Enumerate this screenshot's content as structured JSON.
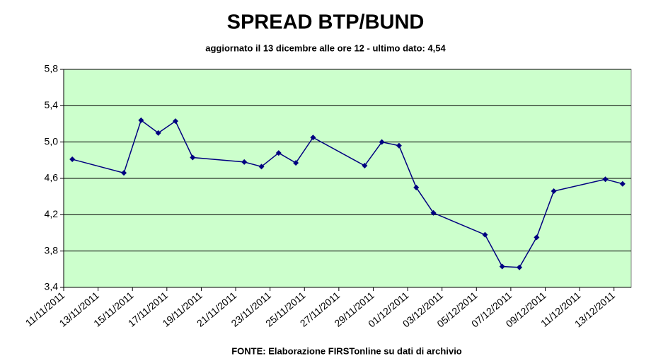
{
  "chart_data": {
    "type": "line",
    "title": "SPREAD BTP/BUND",
    "subtitle": "aggiornato il 13 dicembre alle ore 12 - ultimo dato: 4,54",
    "source": "FONTE: Elaborazione FIRSTonline su dati di archivio",
    "x": [
      "11/11/2011",
      "14/11/2011",
      "15/11/2011",
      "16/11/2011",
      "17/11/2011",
      "18/11/2011",
      "21/11/2011",
      "22/11/2011",
      "23/11/2011",
      "24/11/2011",
      "25/11/2011",
      "28/11/2011",
      "29/11/2011",
      "30/11/2011",
      "01/12/2011",
      "02/12/2011",
      "05/12/2011",
      "06/12/2011",
      "07/12/2011",
      "08/12/2011",
      "09/12/2011",
      "12/12/2011",
      "13/12/2011"
    ],
    "series": [
      {
        "name": "Spread",
        "color": "#000080",
        "values": [
          4.81,
          4.66,
          5.24,
          5.1,
          5.23,
          4.83,
          4.78,
          4.73,
          4.88,
          4.77,
          5.05,
          4.74,
          5.0,
          4.96,
          4.5,
          4.22,
          3.98,
          3.63,
          3.62,
          3.95,
          4.46,
          4.59,
          4.54
        ]
      }
    ],
    "xlim": [
      "11/11/2011",
      "13/12/2011"
    ],
    "xticks": [
      "11/11/2011",
      "13/11/2011",
      "15/11/2011",
      "17/11/2011",
      "19/11/2011",
      "21/11/2011",
      "23/11/2011",
      "25/11/2011",
      "27/11/2011",
      "29/11/2011",
      "01/12/2011",
      "03/12/2011",
      "05/12/2011",
      "07/12/2011",
      "09/12/2011",
      "11/12/2011",
      "13/12/2011"
    ],
    "ylim": [
      3.4,
      5.8
    ],
    "yticks": [
      {
        "value": 3.4,
        "label": "3,4"
      },
      {
        "value": 3.8,
        "label": "3,8"
      },
      {
        "value": 4.2,
        "label": "4,2"
      },
      {
        "value": 4.6,
        "label": "4,6"
      },
      {
        "value": 5.0,
        "label": "5,0"
      },
      {
        "value": 5.4,
        "label": "5,4"
      },
      {
        "value": 5.8,
        "label": "5,8"
      }
    ],
    "grid": true,
    "background": "#ccffcc"
  }
}
